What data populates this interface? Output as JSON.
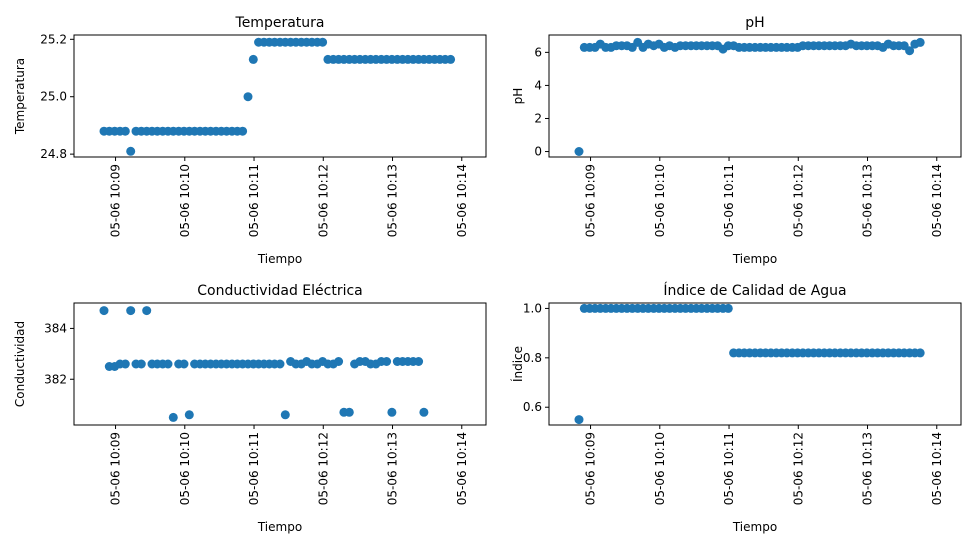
{
  "chart_data": [
    {
      "type": "scatter",
      "title": "Temperatura",
      "xlabel": "Tiempo",
      "ylabel": "Temperatura",
      "color": "#1f77b4",
      "x_range_minutes": [
        8.4,
        14.35
      ],
      "ylim": [
        24.79,
        25.215
      ],
      "yticks": [
        24.8,
        25.0,
        25.2
      ],
      "ytick_labels": [
        "24.8",
        "25.0",
        "25.2"
      ],
      "xticks": [
        "10:09",
        "10:10",
        "10:11",
        "10:12",
        "10:13",
        "10:14"
      ],
      "xtick_labels": [
        "05-06 10:09",
        "05-06 10:10",
        "05-06 10:11",
        "05-06 10:12",
        "05-06 10:13",
        "05-06 10:14"
      ],
      "x_start": "10:08:50",
      "x_step_seconds": 4.62,
      "values": [
        24.88,
        24.88,
        24.88,
        24.88,
        24.88,
        24.81,
        24.88,
        24.88,
        24.88,
        24.88,
        24.88,
        24.88,
        24.88,
        24.88,
        24.88,
        24.88,
        24.88,
        24.88,
        24.88,
        24.88,
        24.88,
        24.88,
        24.88,
        24.88,
        24.88,
        24.88,
        24.88,
        25.0,
        25.13,
        25.19,
        25.19,
        25.19,
        25.19,
        25.19,
        25.19,
        25.19,
        25.19,
        25.19,
        25.19,
        25.19,
        25.19,
        25.19,
        25.13,
        25.13,
        25.13,
        25.13,
        25.13,
        25.13,
        25.13,
        25.13,
        25.13,
        25.13,
        25.13,
        25.13,
        25.13,
        25.13,
        25.13,
        25.13,
        25.13,
        25.13,
        25.13,
        25.13,
        25.13,
        25.13,
        25.13,
        25.13
      ]
    },
    {
      "type": "scatter",
      "title": "pH",
      "xlabel": "Tiempo",
      "ylabel": "pH",
      "color": "#1f77b4",
      "x_range_minutes": [
        8.4,
        14.35
      ],
      "ylim": [
        -0.33,
        7.05
      ],
      "yticks": [
        0,
        2,
        4,
        6
      ],
      "ytick_labels": [
        "0",
        "2",
        "4",
        "6"
      ],
      "xticks": [
        "10:09",
        "10:10",
        "10:11",
        "10:12",
        "10:13",
        "10:14"
      ],
      "xtick_labels": [
        "05-06 10:09",
        "05-06 10:10",
        "05-06 10:11",
        "05-06 10:12",
        "05-06 10:13",
        "05-06 10:14"
      ],
      "x_start": "10:08:50",
      "x_step_seconds": 4.62,
      "values": [
        0.0,
        6.3,
        6.3,
        6.3,
        6.5,
        6.3,
        6.3,
        6.4,
        6.4,
        6.4,
        6.3,
        6.6,
        6.3,
        6.5,
        6.4,
        6.5,
        6.3,
        6.4,
        6.3,
        6.4,
        6.4,
        6.4,
        6.4,
        6.4,
        6.4,
        6.4,
        6.4,
        6.2,
        6.4,
        6.4,
        6.3,
        6.3,
        6.3,
        6.3,
        6.3,
        6.3,
        6.3,
        6.3,
        6.3,
        6.3,
        6.3,
        6.3,
        6.4,
        6.4,
        6.4,
        6.4,
        6.4,
        6.4,
        6.4,
        6.4,
        6.4,
        6.5,
        6.4,
        6.4,
        6.4,
        6.4,
        6.4,
        6.3,
        6.5,
        6.4,
        6.4,
        6.4,
        6.1,
        6.5,
        6.6
      ]
    },
    {
      "type": "scatter",
      "title": "Conductividad Eléctrica",
      "xlabel": "Tiempo",
      "ylabel": "Conductividad",
      "color": "#1f77b4",
      "x_range_minutes": [
        8.4,
        14.35
      ],
      "ylim": [
        380.2,
        385.0
      ],
      "yticks": [
        382,
        384
      ],
      "ytick_labels": [
        "382",
        "384"
      ],
      "xticks": [
        "10:09",
        "10:10",
        "10:11",
        "10:12",
        "10:13",
        "10:14"
      ],
      "xtick_labels": [
        "05-06 10:09",
        "05-06 10:10",
        "05-06 10:11",
        "05-06 10:12",
        "05-06 10:13",
        "05-06 10:14"
      ],
      "x_start": "10:08:50",
      "x_step_seconds": 4.62,
      "values": [
        384.7,
        382.5,
        382.5,
        382.6,
        382.6,
        384.7,
        382.6,
        382.6,
        384.7,
        382.6,
        382.6,
        382.6,
        382.6,
        380.5,
        382.6,
        382.6,
        380.6,
        382.6,
        382.6,
        382.6,
        382.6,
        382.6,
        382.6,
        382.6,
        382.6,
        382.6,
        382.6,
        382.6,
        382.6,
        382.6,
        382.6,
        382.6,
        382.6,
        382.6,
        380.6,
        382.7,
        382.6,
        382.6,
        382.7,
        382.6,
        382.6,
        382.7,
        382.6,
        382.6,
        382.7,
        380.7,
        380.7,
        382.6,
        382.7,
        382.7,
        382.6,
        382.6,
        382.7,
        382.7,
        380.7,
        382.7,
        382.7,
        382.7,
        382.7,
        382.7,
        380.7
      ]
    },
    {
      "type": "scatter",
      "title": "Índice de Calidad de Agua",
      "xlabel": "Tiempo",
      "ylabel": "Índice",
      "color": "#1f77b4",
      "x_range_minutes": [
        8.4,
        14.35
      ],
      "ylim": [
        0.528,
        1.022
      ],
      "yticks": [
        0.6,
        0.8,
        1.0
      ],
      "ytick_labels": [
        "0.6",
        "0.8",
        "1.0"
      ],
      "xticks": [
        "10:09",
        "10:10",
        "10:11",
        "10:12",
        "10:13",
        "10:14"
      ],
      "xtick_labels": [
        "05-06 10:09",
        "05-06 10:10",
        "05-06 10:11",
        "05-06 10:12",
        "05-06 10:13",
        "05-06 10:14"
      ],
      "x_start": "10:08:50",
      "x_step_seconds": 4.62,
      "values": [
        0.55,
        1.0,
        1.0,
        1.0,
        1.0,
        1.0,
        1.0,
        1.0,
        1.0,
        1.0,
        1.0,
        1.0,
        1.0,
        1.0,
        1.0,
        1.0,
        1.0,
        1.0,
        1.0,
        1.0,
        1.0,
        1.0,
        1.0,
        1.0,
        1.0,
        1.0,
        1.0,
        1.0,
        1.0,
        0.82,
        0.82,
        0.82,
        0.82,
        0.82,
        0.82,
        0.82,
        0.82,
        0.82,
        0.82,
        0.82,
        0.82,
        0.82,
        0.82,
        0.82,
        0.82,
        0.82,
        0.82,
        0.82,
        0.82,
        0.82,
        0.82,
        0.82,
        0.82,
        0.82,
        0.82,
        0.82,
        0.82,
        0.82,
        0.82,
        0.82,
        0.82,
        0.82,
        0.82,
        0.82,
        0.82
      ]
    }
  ]
}
